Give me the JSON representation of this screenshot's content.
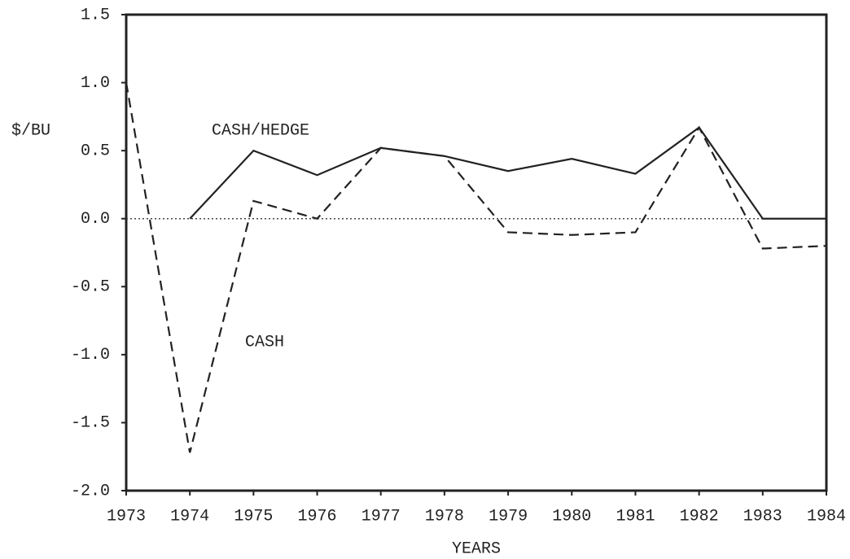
{
  "chart_data": {
    "type": "line",
    "y_label": "$/BU",
    "x_label": "YEARS",
    "x": [
      1973,
      1974,
      1975,
      1976,
      1977,
      1978,
      1979,
      1980,
      1981,
      1982,
      1983,
      1984
    ],
    "series": [
      {
        "name": "CASH/HEDGE",
        "color": "#222222",
        "dash": false,
        "values": [
          null,
          0.0,
          0.5,
          0.32,
          0.52,
          0.46,
          0.35,
          0.44,
          0.33,
          0.67,
          0.0,
          0.0
        ]
      },
      {
        "name": "CASH",
        "color": "#222222",
        "dash": true,
        "values": [
          1.0,
          -1.72,
          0.13,
          0.0,
          0.52,
          0.46,
          -0.1,
          -0.12,
          -0.1,
          0.67,
          -0.22,
          -0.2
        ]
      }
    ],
    "xlim": [
      1973,
      1984
    ],
    "xticks": [
      1973,
      1974,
      1975,
      1976,
      1977,
      1978,
      1979,
      1980,
      1981,
      1982,
      1983,
      1984
    ],
    "ylim": [
      -2,
      1.5
    ],
    "yticks": [
      {
        "value": -2,
        "label": "-2.0"
      },
      -1.5,
      {
        "value": -1,
        "label": "-1.0"
      },
      -0.5,
      {
        "value": 0,
        "label": "0.0"
      },
      0.5,
      {
        "value": 1,
        "label": "1.0"
      },
      1.5
    ],
    "zero_line": true
  }
}
